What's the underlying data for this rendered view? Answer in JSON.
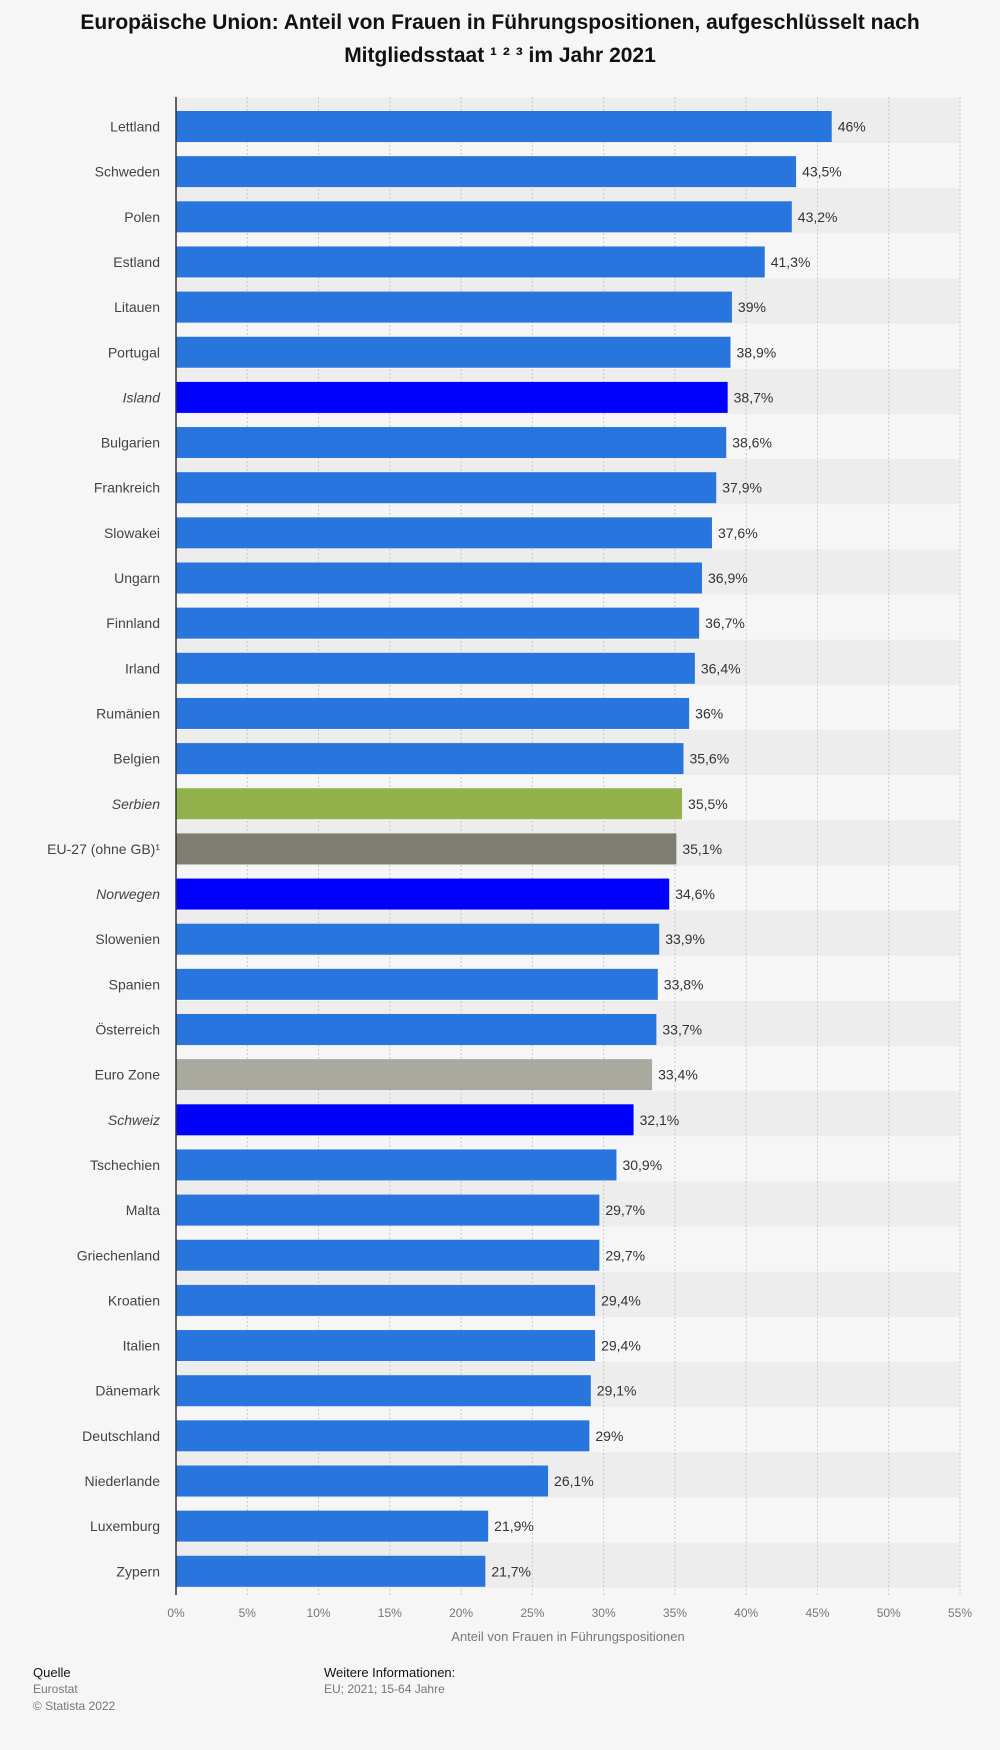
{
  "title": "Europäische Union: Anteil von Frauen in Führungspositionen, aufgeschlüsselt nach Mitgliedsstaat ¹ ² ³ im Jahr 2021",
  "colors": {
    "default": "#2876dd",
    "highlight_blue": "#0000ff",
    "green": "#92b14b",
    "dark_gray": "#7f7d72",
    "light_gray": "#aaa99f",
    "stripe": "#ededed"
  },
  "chart_data": {
    "type": "bar",
    "orientation": "horizontal",
    "xlabel": "Anteil von Frauen in Führungspositionen",
    "xlim": [
      0,
      55
    ],
    "xticks": [
      0,
      5,
      10,
      15,
      20,
      25,
      30,
      35,
      40,
      45,
      50,
      55
    ],
    "xtick_labels": [
      "0%",
      "5%",
      "10%",
      "15%",
      "20%",
      "25%",
      "30%",
      "35%",
      "40%",
      "45%",
      "50%",
      "55%"
    ],
    "grid": "vertical dashed",
    "categories": [
      "Lettland",
      "Schweden",
      "Polen",
      "Estland",
      "Litauen",
      "Portugal",
      "Island",
      "Bulgarien",
      "Frankreich",
      "Slowakei",
      "Ungarn",
      "Finnland",
      "Irland",
      "Rumänien",
      "Belgien",
      "Serbien",
      "EU-27 (ohne GB)¹",
      "Norwegen",
      "Slowenien",
      "Spanien",
      "Österreich",
      "Euro Zone",
      "Schweiz",
      "Tschechien",
      "Malta",
      "Griechenland",
      "Kroatien",
      "Italien",
      "Dänemark",
      "Deutschland",
      "Niederlande",
      "Luxemburg",
      "Zypern"
    ],
    "values": [
      46,
      43.5,
      43.2,
      41.3,
      39,
      38.9,
      38.7,
      38.6,
      37.9,
      37.6,
      36.9,
      36.7,
      36.4,
      36,
      35.6,
      35.5,
      35.1,
      34.6,
      33.9,
      33.8,
      33.7,
      33.4,
      32.1,
      30.9,
      29.7,
      29.7,
      29.4,
      29.4,
      29.1,
      29,
      26.1,
      21.9,
      21.7
    ],
    "value_labels": [
      "46%",
      "43,5%",
      "43,2%",
      "41,3%",
      "39%",
      "38,9%",
      "38,7%",
      "38,6%",
      "37,9%",
      "37,6%",
      "36,9%",
      "36,7%",
      "36,4%",
      "36%",
      "35,6%",
      "35,5%",
      "35,1%",
      "34,6%",
      "33,9%",
      "33,8%",
      "33,7%",
      "33,4%",
      "32,1%",
      "30,9%",
      "29,7%",
      "29,7%",
      "29,4%",
      "29,4%",
      "29,1%",
      "29%",
      "26,1%",
      "21,9%",
      "21,7%"
    ],
    "bar_colors": [
      "default",
      "default",
      "default",
      "default",
      "default",
      "default",
      "highlight_blue",
      "default",
      "default",
      "default",
      "default",
      "default",
      "default",
      "default",
      "default",
      "green",
      "dark_gray",
      "highlight_blue",
      "default",
      "default",
      "default",
      "light_gray",
      "highlight_blue",
      "default",
      "default",
      "default",
      "default",
      "default",
      "default",
      "default",
      "default",
      "default",
      "default"
    ],
    "italic_labels": [
      "Island",
      "Serbien",
      "Norwegen",
      "Schweiz"
    ]
  },
  "footer": {
    "source_heading": "Quelle",
    "source_name": "Eurostat",
    "copyright": "© Statista 2022",
    "info_heading": "Weitere Informationen:",
    "info_text": "EU; 2021; 15-64 Jahre"
  }
}
